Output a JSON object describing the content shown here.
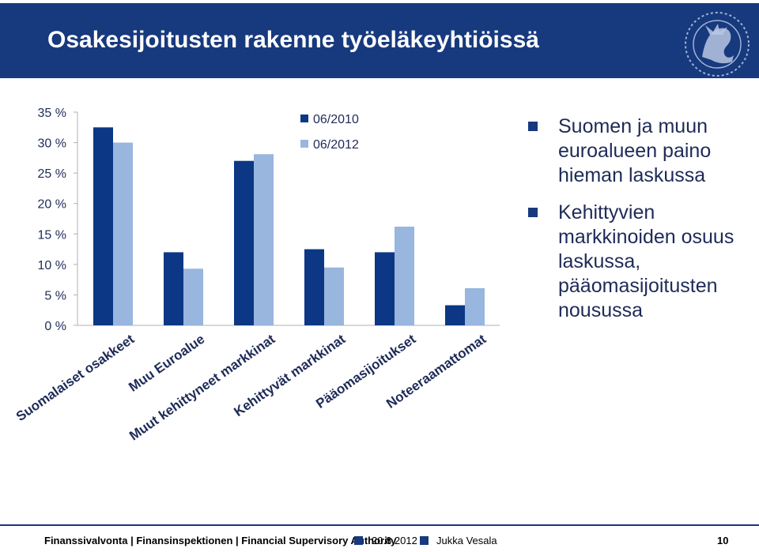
{
  "header": {
    "title": "Osakesijoitusten rakenne työeläkeyhtiöissä"
  },
  "colors": {
    "header_bg": "#17397d",
    "series_2010": "#0b3785",
    "series_2012": "#98b6de",
    "accent": "#17397d"
  },
  "chart_data": {
    "type": "bar",
    "categories": [
      "Suomalaiset osakkeet",
      "Muu Euroalue",
      "Muut kehittyneet markkinat",
      "Kehittyvät markkinat",
      "Pääomasijoitukset",
      "Noteeraamattomat"
    ],
    "series": [
      {
        "name": "06/2010",
        "values": [
          32.5,
          12.0,
          27.0,
          12.5,
          12.0,
          3.3
        ]
      },
      {
        "name": "06/2012",
        "values": [
          30.0,
          9.3,
          28.1,
          9.5,
          16.2,
          6.1
        ]
      }
    ],
    "y_ticks": [
      "0 %",
      "5 %",
      "10 %",
      "15 %",
      "20 %",
      "25 %",
      "30 %",
      "35 %"
    ],
    "ylim": [
      0,
      35
    ],
    "legend_position": "top-center",
    "grid": false
  },
  "bullets": [
    "Suomen ja muun euroalueen paino hieman laskussa",
    "Kehittyvien markkinoiden osuus laskussa, pääomasijoitusten nousussa"
  ],
  "footer": {
    "organization": "Finanssivalvonta | Finansinspektionen | Financial Supervisory Authority",
    "date": "20.8.2012",
    "author": "Jukka Vesala",
    "page": "10"
  },
  "icons": {
    "crest": "lion-crest-icon",
    "bullet": "square-bullet-icon"
  }
}
